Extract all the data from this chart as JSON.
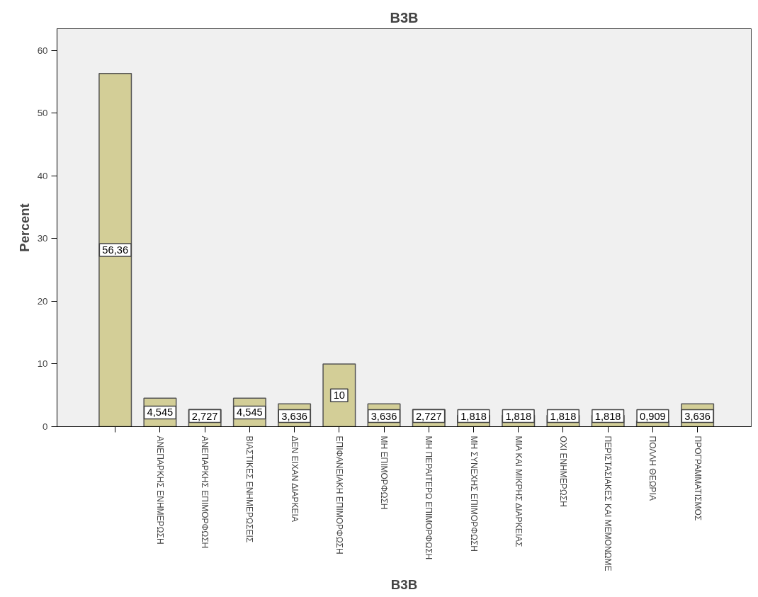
{
  "chart_data": {
    "type": "bar",
    "title": "B3B",
    "xlabel": "B3B",
    "ylabel": "Percent",
    "categories": [
      null,
      "ΑΝΕΠΑΡΚΗΣ ΕΝΗΜΕΡΩΣΗ",
      "ΑΝΕΠΑΡΚΗΣ ΕΠΙΜΟΡΦΩΣΗ",
      "ΒΙΑΣΤΙΚΕΣ ΕΝΗΜΕΡΩΣΕΙΣ",
      "ΔΕΝ ΕΙΧΑΝ ΔΙΑΡΚΕΙΑ",
      "ΕΠΙΦΑΝΕΙΑΚΗ ΕΠΙΜΟΡΦΩΣΗ",
      "ΜΗ ΕΠΙΜΟΡΦΩΣΗ",
      "ΜΗ ΠΕΡΑΙΤΕΡΩ ΕΠΙΜΟΡΦΩΣΗ",
      "ΜΗ ΣΥΝΕΧΗΣ ΕΠΙΜΟΡΦΩΣΗ",
      "ΜΙΑ ΚΑΙ ΜΙΚΡΗΣ ΔΙΑΡΚΕΙΑΣ",
      "ΟΧΙ ΕΝΗΜΕΡΩΣΗ",
      "ΠΕΡΙΣΤΑΣΙΑΚΕΣ ΚΑΙ ΜΕΜΟΝΩΜΕ",
      "ΠΟΛΛΗ ΘΕΩΡΙΑ",
      "ΠΡΟΓΡΑΜΜΑΤΙΣΜΟΣ"
    ],
    "values": [
      56.36,
      4.545,
      2.727,
      4.545,
      3.636,
      10,
      3.636,
      2.727,
      1.818,
      1.818,
      1.818,
      1.818,
      0.909,
      3.636
    ],
    "value_labels": [
      "56,36",
      "4,545",
      "2,727",
      "4,545",
      "3,636",
      "10",
      "3,636",
      "2,727",
      "1,818",
      "1,818",
      "1,818",
      "1,818",
      "0,909",
      "3,636"
    ],
    "color": "#d3ce97",
    "ylim": [
      0,
      63.5
    ],
    "yticks": [
      0,
      10,
      20,
      30,
      40,
      50,
      60
    ],
    "grid": false
  }
}
